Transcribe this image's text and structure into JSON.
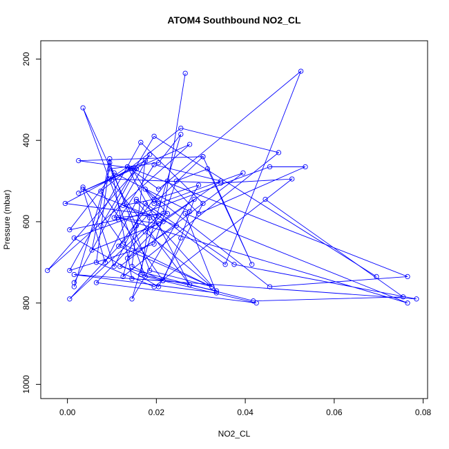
{
  "chart_data": {
    "type": "scatter",
    "title": "ATOM4 Southbound NO2_CL",
    "xlabel": "NO2_CL",
    "ylabel": "Pressure (mbar)",
    "xlim": [
      -0.006,
      0.081
    ],
    "ylim": [
      1035,
      155
    ],
    "y_reversed": true,
    "grid": false,
    "x_ticks": [
      {
        "value": 0.0,
        "label": "0.00"
      },
      {
        "value": 0.02,
        "label": "0.02"
      },
      {
        "value": 0.04,
        "label": "0.04"
      },
      {
        "value": 0.06,
        "label": "0.06"
      },
      {
        "value": 0.08,
        "label": "0.08"
      }
    ],
    "y_ticks": [
      {
        "value": 200,
        "label": "200"
      },
      {
        "value": 400,
        "label": "400"
      },
      {
        "value": 600,
        "label": "600"
      },
      {
        "value": 800,
        "label": "800"
      },
      {
        "value": 1000,
        "label": "1000"
      }
    ],
    "color": "#0000ff",
    "series": [
      {
        "x": [
          0.0445,
          0.0755,
          0.0418,
          0.0118,
          0.0395,
          0.0205,
          0.0005,
          0.0205,
          -0.0005,
          0.0175,
          0.0145,
          0.0215,
          0.0075,
          0.0255,
          0.0475,
          0.0125,
          0.0155,
          0.0035,
          0.0175,
          0.0425,
          0.0065,
          0.0215,
          0.0265
        ],
        "y": [
          545,
          785,
          795,
          710,
          480,
          555,
          790,
          585,
          555,
          450,
          710,
          745,
          525,
          370,
          430,
          735,
          610,
          320,
          735,
          800,
          750,
          580,
          235
        ]
      },
      {
        "x": [
          0.0095,
          0.0345,
          0.0505,
          0.0195,
          0.0065,
          0.0095,
          0.0185,
          0.0325,
          0.0115,
          0.0225,
          0.0295,
          0.0535,
          0.0455,
          0.0015,
          0.0205,
          0.0305,
          0.0165,
          0.0005,
          0.0195,
          0.0245,
          0.0315,
          0.0415,
          0.0305
        ],
        "y": [
          495,
          505,
          495,
          760,
          700,
          455,
          720,
          760,
          660,
          500,
          580,
          465,
          465,
          640,
          760,
          555,
          405,
          720,
          655,
          500,
          470,
          705,
          440
        ]
      },
      {
        "x": [
          0.0015,
          0.0155,
          0.0025,
          0.0305,
          0.0195,
          0.0145,
          0.0025,
          0.0275,
          -0.0045,
          0.0185,
          0.0105,
          0.0225,
          0.0175,
          0.0455,
          0.0765,
          0.0135,
          0.0275,
          0.0095,
          0.0135,
          0.0205,
          0.0525,
          0.0355,
          0.0155
        ],
        "y": [
          750,
          470,
          450,
          440,
          555,
          470,
          530,
          410,
          720,
          435,
          590,
          580,
          520,
          760,
          735,
          465,
          755,
          495,
          465,
          520,
          230,
          705,
          545
        ]
      },
      {
        "x": [
          0.0695,
          0.0195,
          0.0075,
          0.0105,
          0.0175,
          0.0375,
          0.0785,
          0.0015,
          0.0335,
          0.0265,
          0.0765,
          0.0115,
          0.0205,
          0.0055,
          0.0095,
          0.0145,
          0.0215,
          0.0255,
          0.0285,
          0.0175,
          0.0325,
          0.0125,
          0.0035
        ],
        "y": [
          735,
          390,
          610,
          710,
          555,
          705,
          790,
          730,
          775,
          580,
          800,
          590,
          605,
          670,
          445,
          740,
          745,
          640,
          545,
          625,
          760,
          655,
          515
        ]
      },
      {
        "x": [
          0.0015,
          0.0095,
          0.0205,
          0.0255,
          0.0145,
          0.0295,
          0.0195,
          0.0125,
          0.0185,
          0.0165,
          0.0335,
          0.0155,
          0.0085,
          0.0035,
          0.0245,
          0.0135,
          0.0215,
          0.0345,
          0.0195,
          0.0115,
          0.0005,
          0.0105,
          0.0275
        ],
        "y": [
          760,
          470,
          455,
          385,
          790,
          510,
          545,
          560,
          590,
          730,
          770,
          550,
          700,
          520,
          610,
          690,
          600,
          500,
          460,
          595,
          620,
          480,
          575
        ]
      }
    ]
  }
}
